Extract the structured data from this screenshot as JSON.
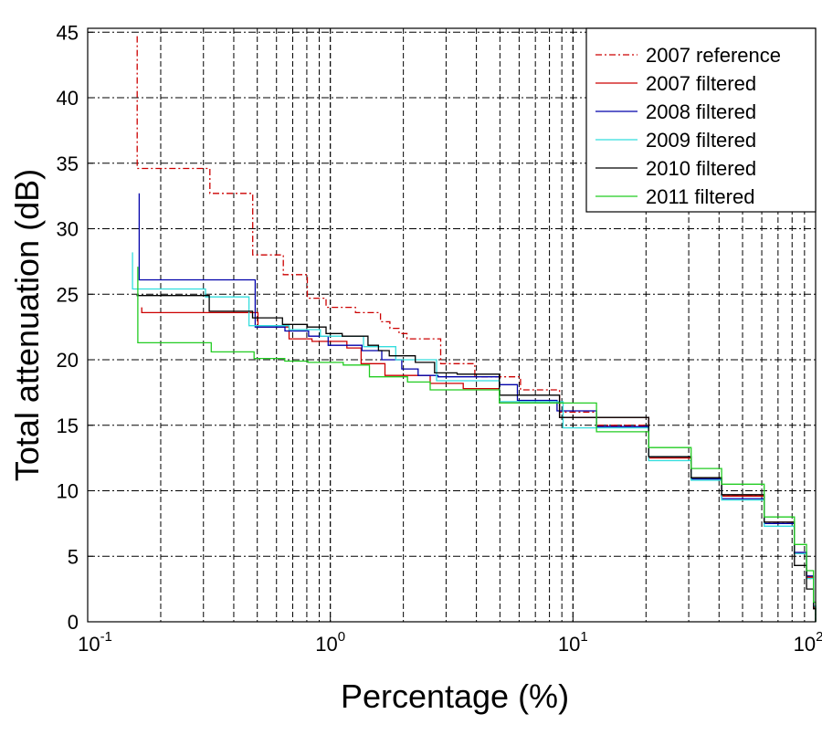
{
  "chart_data": {
    "type": "line",
    "title": "",
    "xlabel": "Percentage (%)",
    "ylabel": "Total attenuation (dB)",
    "xscale": "log",
    "xlim": [
      0.1,
      100
    ],
    "ylim": [
      0,
      45.3
    ],
    "xticks": [
      0.1,
      1,
      10,
      100
    ],
    "xtick_labels": [
      {
        "base": "10",
        "exp": "-1"
      },
      {
        "base": "10",
        "exp": "0"
      },
      {
        "base": "10",
        "exp": "1"
      },
      {
        "base": "10",
        "exp": "2"
      }
    ],
    "yticks": [
      0,
      5,
      10,
      15,
      20,
      25,
      30,
      35,
      40,
      45
    ],
    "ytick_labels": [
      "0",
      "5",
      "10",
      "15",
      "20",
      "25",
      "30",
      "35",
      "40",
      "45"
    ],
    "grid": true,
    "legend_position": "top-right",
    "series": [
      {
        "name": "2007 reference",
        "color": "#cc0000",
        "style": "dashdot",
        "points": [
          [
            0.16,
            44.7
          ],
          [
            0.16,
            34.6
          ],
          [
            0.319,
            32.7
          ],
          [
            0.479,
            28.0
          ],
          [
            0.64,
            26.5
          ],
          [
            0.804,
            24.7
          ],
          [
            0.96,
            24.0
          ],
          [
            1.27,
            23.6
          ],
          [
            1.61,
            22.9
          ],
          [
            1.76,
            22.4
          ],
          [
            1.92,
            22.0
          ],
          [
            2.07,
            21.6
          ],
          [
            2.85,
            19.7
          ],
          [
            3.94,
            18.7
          ],
          [
            6.08,
            17.7
          ],
          [
            8.8,
            16.0
          ],
          [
            12.5,
            15.0
          ],
          [
            20.5,
            12.6
          ],
          [
            30.7,
            11.0
          ],
          [
            41,
            9.6
          ],
          [
            61.4,
            7.5
          ],
          [
            81.8,
            5.2
          ],
          [
            91.8,
            3.3
          ],
          [
            98,
            1.0
          ],
          [
            100,
            0
          ]
        ]
      },
      {
        "name": "2007 filtered",
        "color": "#cc0000",
        "style": "solid",
        "points": [
          [
            0.167,
            24.0
          ],
          [
            0.167,
            23.6
          ],
          [
            0.503,
            22.5
          ],
          [
            0.676,
            21.6
          ],
          [
            0.84,
            21.4
          ],
          [
            1.17,
            20.9
          ],
          [
            1.34,
            19.7
          ],
          [
            1.68,
            18.8
          ],
          [
            2.58,
            18.2
          ],
          [
            3.53,
            17.8
          ],
          [
            4.97,
            16.7
          ],
          [
            8.8,
            15.6
          ],
          [
            20.5,
            12.5
          ],
          [
            30.7,
            11.0
          ],
          [
            41,
            9.6
          ],
          [
            61.4,
            7.6
          ],
          [
            81.8,
            5.2
          ],
          [
            91.8,
            3.4
          ],
          [
            98,
            1.1
          ],
          [
            100,
            0
          ]
        ]
      },
      {
        "name": "2008 filtered",
        "color": "#0000aa",
        "style": "solid",
        "points": [
          [
            0.163,
            32.7
          ],
          [
            0.163,
            26.1
          ],
          [
            0.49,
            22.5
          ],
          [
            0.65,
            22.2
          ],
          [
            0.814,
            21.8
          ],
          [
            0.98,
            21.1
          ],
          [
            1.35,
            20.7
          ],
          [
            1.63,
            20.0
          ],
          [
            1.97,
            19.3
          ],
          [
            2.3,
            18.8
          ],
          [
            2.78,
            18.7
          ],
          [
            4.97,
            18.1
          ],
          [
            5.9,
            16.9
          ],
          [
            8.6,
            16.1
          ],
          [
            12.5,
            14.9
          ],
          [
            20.5,
            12.6
          ],
          [
            30.7,
            10.9
          ],
          [
            41,
            9.4
          ],
          [
            61.4,
            7.5
          ],
          [
            81.8,
            5.3
          ],
          [
            91.8,
            3.5
          ],
          [
            98,
            1.2
          ],
          [
            100,
            0
          ]
        ]
      },
      {
        "name": "2009 filtered",
        "color": "#33dddd",
        "style": "solid",
        "points": [
          [
            0.153,
            28.2
          ],
          [
            0.153,
            25.4
          ],
          [
            0.306,
            24.8
          ],
          [
            0.462,
            22.6
          ],
          [
            0.676,
            22.3
          ],
          [
            0.91,
            21.8
          ],
          [
            1.37,
            21.0
          ],
          [
            1.86,
            20.0
          ],
          [
            2.74,
            18.4
          ],
          [
            4.97,
            16.8
          ],
          [
            9.1,
            14.8
          ],
          [
            20.5,
            12.3
          ],
          [
            30.7,
            10.8
          ],
          [
            41,
            9.3
          ],
          [
            61.4,
            7.3
          ],
          [
            81.8,
            5.2
          ],
          [
            91.8,
            3.3
          ],
          [
            98,
            1.2
          ],
          [
            100,
            0
          ]
        ]
      },
      {
        "name": "2010 filtered",
        "color": "#000000",
        "style": "solid",
        "points": [
          [
            0.159,
            24.9
          ],
          [
            0.317,
            23.7
          ],
          [
            0.478,
            23.2
          ],
          [
            0.635,
            22.7
          ],
          [
            0.804,
            22.5
          ],
          [
            0.96,
            22.0
          ],
          [
            1.12,
            21.8
          ],
          [
            1.43,
            21.1
          ],
          [
            1.58,
            20.7
          ],
          [
            1.75,
            20.3
          ],
          [
            2.24,
            19.8
          ],
          [
            2.69,
            19.0
          ],
          [
            3.33,
            18.9
          ],
          [
            4.97,
            17.3
          ],
          [
            8.8,
            15.6
          ],
          [
            20.5,
            12.6
          ],
          [
            30.7,
            11.0
          ],
          [
            41,
            9.7
          ],
          [
            61.4,
            7.6
          ],
          [
            81.8,
            4.3
          ],
          [
            91.8,
            2.5
          ],
          [
            98,
            1.0
          ],
          [
            100,
            0
          ]
        ]
      },
      {
        "name": "2011 filtered",
        "color": "#22cc22",
        "style": "solid",
        "points": [
          [
            0.161,
            27.1
          ],
          [
            0.161,
            21.3
          ],
          [
            0.323,
            20.6
          ],
          [
            0.485,
            20.1
          ],
          [
            0.649,
            19.9
          ],
          [
            0.808,
            19.8
          ],
          [
            1.13,
            19.6
          ],
          [
            1.45,
            18.7
          ],
          [
            2.08,
            18.3
          ],
          [
            2.58,
            17.7
          ],
          [
            4.97,
            16.7
          ],
          [
            12.5,
            14.5
          ],
          [
            20.5,
            13.3
          ],
          [
            30.7,
            11.7
          ],
          [
            41,
            10.5
          ],
          [
            61.4,
            8.0
          ],
          [
            81.8,
            5.9
          ],
          [
            91.8,
            3.9
          ],
          [
            98,
            1.5
          ],
          [
            100,
            0
          ]
        ]
      }
    ]
  }
}
